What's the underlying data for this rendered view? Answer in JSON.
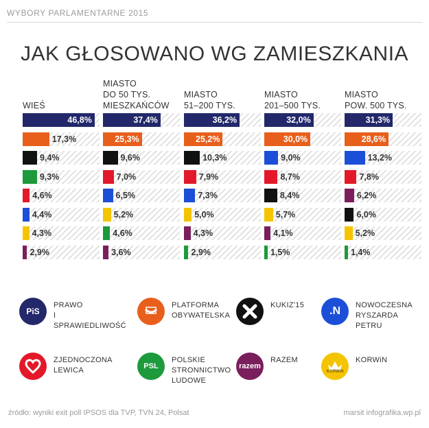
{
  "header": {
    "section": "WYBORY PARLAMENTARNE 2015"
  },
  "title": "JAK GŁOSOWANO WG ZAMIESZKANIA",
  "colors": {
    "PIS": "#23286b",
    "PO": "#e85f1c",
    "KUKIZ": "#111111",
    "PSL": "#1c9a3c",
    "ZL": "#e3192a",
    "NOWOCZESNA": "#1c4fd8",
    "KORWIN": "#f5c400",
    "RAZEM": "#7a1f5c"
  },
  "chart_data": {
    "type": "bar",
    "xlim": [
      0,
      50
    ],
    "groups": [
      {
        "label": "WIEŚ",
        "bars": [
          {
            "party": "PIS",
            "value": 46.8,
            "text": "46,8%"
          },
          {
            "party": "PO",
            "value": 17.3,
            "text": "17,3%"
          },
          {
            "party": "KUKIZ",
            "value": 9.4,
            "text": "9,4%"
          },
          {
            "party": "PSL",
            "value": 9.3,
            "text": "9,3%"
          },
          {
            "party": "ZL",
            "value": 4.6,
            "text": "4,6%"
          },
          {
            "party": "NOWOCZESNA",
            "value": 4.4,
            "text": "4,4%"
          },
          {
            "party": "KORWIN",
            "value": 4.3,
            "text": "4,3%"
          },
          {
            "party": "RAZEM",
            "value": 2.9,
            "text": "2,9%"
          }
        ]
      },
      {
        "label": "MIASTO\nDO 50 TYS.\nMIESZKAŃCÓW",
        "bars": [
          {
            "party": "PIS",
            "value": 37.4,
            "text": "37,4%"
          },
          {
            "party": "PO",
            "value": 25.3,
            "text": "25,3%"
          },
          {
            "party": "KUKIZ",
            "value": 9.6,
            "text": "9,6%"
          },
          {
            "party": "ZL",
            "value": 7.0,
            "text": "7,0%"
          },
          {
            "party": "NOWOCZESNA",
            "value": 6.5,
            "text": "6,5%"
          },
          {
            "party": "KORWIN",
            "value": 5.2,
            "text": "5,2%"
          },
          {
            "party": "PSL",
            "value": 4.6,
            "text": "4,6%"
          },
          {
            "party": "RAZEM",
            "value": 3.6,
            "text": "3,6%"
          }
        ]
      },
      {
        "label": "MIASTO\n51–200 TYS.",
        "bars": [
          {
            "party": "PIS",
            "value": 36.2,
            "text": "36,2%"
          },
          {
            "party": "PO",
            "value": 25.2,
            "text": "25,2%"
          },
          {
            "party": "KUKIZ",
            "value": 10.3,
            "text": "10,3%"
          },
          {
            "party": "ZL",
            "value": 7.9,
            "text": "7,9%"
          },
          {
            "party": "NOWOCZESNA",
            "value": 7.3,
            "text": "7,3%"
          },
          {
            "party": "KORWIN",
            "value": 5.0,
            "text": "5,0%"
          },
          {
            "party": "RAZEM",
            "value": 4.3,
            "text": "4,3%"
          },
          {
            "party": "PSL",
            "value": 2.9,
            "text": "2,9%"
          }
        ]
      },
      {
        "label": "MIASTO\n201–500 TYS.",
        "bars": [
          {
            "party": "PIS",
            "value": 32.0,
            "text": "32,0%"
          },
          {
            "party": "PO",
            "value": 30.0,
            "text": "30,0%"
          },
          {
            "party": "NOWOCZESNA",
            "value": 9.0,
            "text": "9,0%"
          },
          {
            "party": "ZL",
            "value": 8.7,
            "text": "8,7%"
          },
          {
            "party": "KUKIZ",
            "value": 8.4,
            "text": "8,4%"
          },
          {
            "party": "KORWIN",
            "value": 5.7,
            "text": "5,7%"
          },
          {
            "party": "RAZEM",
            "value": 4.1,
            "text": "4,1%"
          },
          {
            "party": "PSL",
            "value": 1.5,
            "text": "1,5%"
          }
        ]
      },
      {
        "label": "MIASTO\nPOW. 500 TYS.",
        "bars": [
          {
            "party": "PIS",
            "value": 31.3,
            "text": "31,3%"
          },
          {
            "party": "PO",
            "value": 28.6,
            "text": "28,6%"
          },
          {
            "party": "NOWOCZESNA",
            "value": 13.2,
            "text": "13,2%"
          },
          {
            "party": "ZL",
            "value": 7.8,
            "text": "7,8%"
          },
          {
            "party": "RAZEM",
            "value": 6.2,
            "text": "6,2%"
          },
          {
            "party": "KUKIZ",
            "value": 6.0,
            "text": "6,0%"
          },
          {
            "party": "KORWIN",
            "value": 5.2,
            "text": "5,2%"
          },
          {
            "party": "PSL",
            "value": 1.4,
            "text": "1,4%"
          }
        ]
      }
    ]
  },
  "legend": [
    {
      "party": "PIS",
      "icon": "pis-logo-icon",
      "icon_text": "PiS",
      "label": "PRAWO\nI SPRAWIEDLIWOŚĆ"
    },
    {
      "party": "PO",
      "icon": "po-logo-icon",
      "icon_text": "",
      "label": "PLATFORMA\nOBYWATELSKA"
    },
    {
      "party": "KUKIZ",
      "icon": "kukiz-logo-icon",
      "icon_text": "",
      "label": "KUKIZ'15"
    },
    {
      "party": "NOWOCZESNA",
      "icon": "nowoczesna-logo-icon",
      "icon_text": ".N",
      "label": "NOWOCZESNA\nRYSZARDA PETRU"
    },
    {
      "party": "ZL",
      "icon": "zl-heart-icon",
      "icon_text": "",
      "label": "ZJEDNOCZONA\nLEWICA"
    },
    {
      "party": "PSL",
      "icon": "psl-logo-icon",
      "icon_text": "PSL",
      "label": "POLSKIE\nSTRONNICTWO\nLUDOWE"
    },
    {
      "party": "RAZEM",
      "icon": "razem-logo-icon",
      "icon_text": "razem",
      "label": "RAZEM"
    },
    {
      "party": "KORWIN",
      "icon": "korwin-crown-icon",
      "icon_text": "KORWiN",
      "label": "KORWiN"
    }
  ],
  "footer": {
    "source": "źródło: wyniki exit poll IPSOS dla TVP, TVN 24, Polsat",
    "credit": "marsit infografika.wp.pl"
  }
}
